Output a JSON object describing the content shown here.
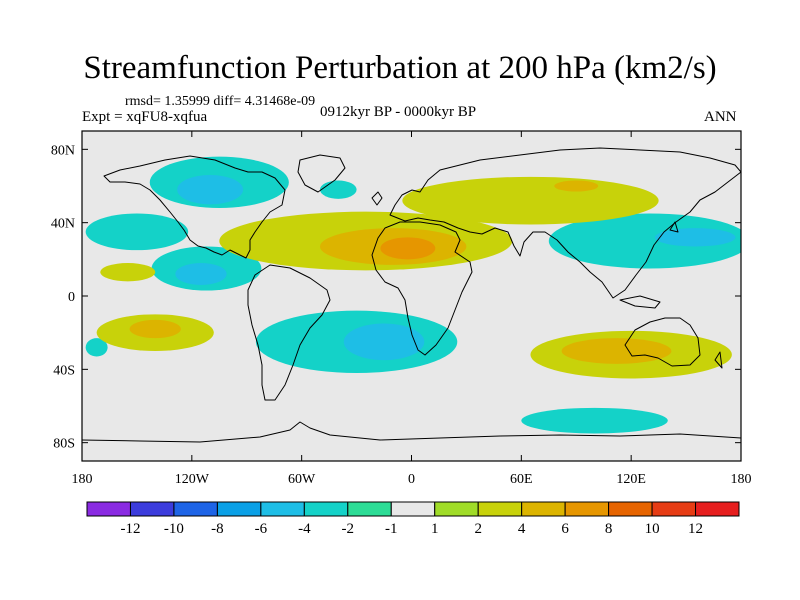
{
  "title": "Streamfunction Perturbation at 200 hPa (km2/s)",
  "stats": "rmsd= 1.35999  diff= 4.31468e-09",
  "experiment": "Expt = xqFU8-xqfua",
  "period": "0912kyr BP - 0000kyr BP",
  "season": "ANN",
  "chart_data": {
    "type": "heatmap",
    "projection": "cylindrical-equidistant",
    "lon_range": [
      -180,
      180
    ],
    "lat_range": [
      -90,
      90
    ],
    "x_ticks": [
      {
        "value": -180,
        "label": "180"
      },
      {
        "value": -120,
        "label": "120W"
      },
      {
        "value": -60,
        "label": "60W"
      },
      {
        "value": 0,
        "label": "0"
      },
      {
        "value": 60,
        "label": "60E"
      },
      {
        "value": 120,
        "label": "120E"
      },
      {
        "value": 180,
        "label": "180"
      }
    ],
    "y_ticks": [
      {
        "value": 80,
        "label": "80N"
      },
      {
        "value": 40,
        "label": "40N"
      },
      {
        "value": 0,
        "label": "0"
      },
      {
        "value": -40,
        "label": "40S"
      },
      {
        "value": -80,
        "label": "80S"
      }
    ],
    "colorbar": {
      "colors": [
        "#8a2be2",
        "#3c3cdc",
        "#1e64e6",
        "#0aa0e6",
        "#1ebee6",
        "#14d2c8",
        "#2ddc96",
        "#e8e8e8",
        "#a0dc28",
        "#c8d20a",
        "#dcb400",
        "#e69600",
        "#e66400",
        "#e63c14",
        "#e61e1e"
      ],
      "labels": [
        "-12",
        "-10",
        "-8",
        "-6",
        "-4",
        "-2",
        "-1",
        "1",
        "2",
        "4",
        "6",
        "8",
        "10",
        "12"
      ]
    },
    "regions": [
      {
        "sign": "negative",
        "level": -2,
        "center": [
          -105,
          62
        ],
        "extent": [
          38,
          14
        ]
      },
      {
        "sign": "negative",
        "level": -4,
        "center": [
          -110,
          58
        ],
        "extent": [
          18,
          8
        ]
      },
      {
        "sign": "negative",
        "level": -2,
        "center": [
          -40,
          58
        ],
        "extent": [
          10,
          5
        ]
      },
      {
        "sign": "negative",
        "level": -2,
        "center": [
          -150,
          35
        ],
        "extent": [
          28,
          10
        ]
      },
      {
        "sign": "negative",
        "level": -2,
        "center": [
          -112,
          15
        ],
        "extent": [
          30,
          12
        ]
      },
      {
        "sign": "negative",
        "level": -4,
        "center": [
          -115,
          12
        ],
        "extent": [
          14,
          6
        ]
      },
      {
        "sign": "negative",
        "level": -2,
        "center": [
          -30,
          -25
        ],
        "extent": [
          55,
          17
        ]
      },
      {
        "sign": "negative",
        "level": -4,
        "center": [
          -15,
          -25
        ],
        "extent": [
          22,
          10
        ]
      },
      {
        "sign": "negative",
        "level": -2,
        "center": [
          130,
          30
        ],
        "extent": [
          55,
          15
        ]
      },
      {
        "sign": "negative",
        "level": -4,
        "center": [
          155,
          32
        ],
        "extent": [
          22,
          5
        ]
      },
      {
        "sign": "negative",
        "level": -2,
        "center": [
          100,
          -68
        ],
        "extent": [
          40,
          7
        ]
      },
      {
        "sign": "negative",
        "level": -2,
        "center": [
          -172,
          -28
        ],
        "extent": [
          6,
          5
        ]
      },
      {
        "sign": "positive",
        "level": 2,
        "center": [
          -25,
          30
        ],
        "extent": [
          80,
          16
        ]
      },
      {
        "sign": "positive",
        "level": 4,
        "center": [
          -10,
          27
        ],
        "extent": [
          40,
          10
        ]
      },
      {
        "sign": "positive",
        "level": 6,
        "center": [
          -2,
          26
        ],
        "extent": [
          15,
          6
        ]
      },
      {
        "sign": "positive",
        "level": 2,
        "center": [
          65,
          52
        ],
        "extent": [
          70,
          13
        ]
      },
      {
        "sign": "positive",
        "level": 4,
        "center": [
          90,
          60
        ],
        "extent": [
          12,
          3
        ]
      },
      {
        "sign": "positive",
        "level": 2,
        "center": [
          -140,
          -20
        ],
        "extent": [
          32,
          10
        ]
      },
      {
        "sign": "positive",
        "level": 4,
        "center": [
          -140,
          -18
        ],
        "extent": [
          14,
          5
        ]
      },
      {
        "sign": "positive",
        "level": 2,
        "center": [
          -155,
          13
        ],
        "extent": [
          15,
          5
        ]
      },
      {
        "sign": "positive",
        "level": 2,
        "center": [
          120,
          -32
        ],
        "extent": [
          55,
          13
        ]
      },
      {
        "sign": "positive",
        "level": 4,
        "center": [
          112,
          -30
        ],
        "extent": [
          30,
          7
        ]
      }
    ]
  }
}
